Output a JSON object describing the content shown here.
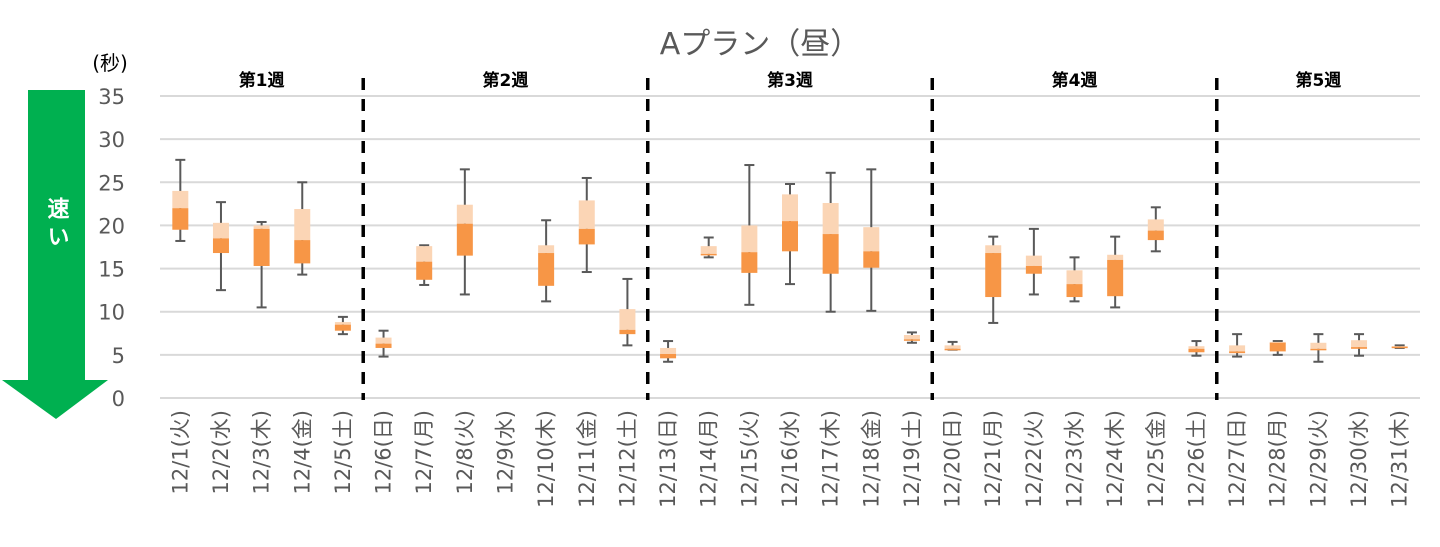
{
  "chart_data": {
    "type": "boxplot",
    "title": "Aプラン（昼）",
    "ylabel": "(秒)",
    "ylim": [
      0,
      35
    ],
    "yticks": [
      0,
      5,
      10,
      15,
      20,
      25,
      30,
      35
    ],
    "grid": true,
    "arrow_label": "速い",
    "colors": {
      "upper_box": "#fbd5b5",
      "lower_box": "#f79646",
      "whisker": "#595959",
      "grid": "#d9d9d9",
      "arrow": "#00b050",
      "separator": "#000000"
    },
    "weeks": [
      {
        "label": "第1週",
        "start": 0,
        "end": 4
      },
      {
        "label": "第2週",
        "start": 5,
        "end": 11
      },
      {
        "label": "第3週",
        "start": 12,
        "end": 18
      },
      {
        "label": "第4週",
        "start": 19,
        "end": 25
      },
      {
        "label": "第5週",
        "start": 26,
        "end": 30
      }
    ],
    "categories": [
      "12/1(火)",
      "12/2(水)",
      "12/3(木)",
      "12/4(金)",
      "12/5(土)",
      "12/6(日)",
      "12/7(月)",
      "12/8(火)",
      "12/9(水)",
      "12/10(木)",
      "12/11(金)",
      "12/12(土)",
      "12/13(日)",
      "12/14(月)",
      "12/15(火)",
      "12/16(水)",
      "12/17(木)",
      "12/18(金)",
      "12/19(土)",
      "12/20(日)",
      "12/21(月)",
      "12/22(火)",
      "12/23(水)",
      "12/24(木)",
      "12/25(金)",
      "12/26(土)",
      "12/27(日)",
      "12/28(月)",
      "12/29(火)",
      "12/30(水)",
      "12/31(木)"
    ],
    "boxes": [
      {
        "min": 18.2,
        "q1": 19.5,
        "median": 22.0,
        "q3": 24.0,
        "max": 27.6
      },
      {
        "min": 12.5,
        "q1": 16.8,
        "median": 18.5,
        "q3": 20.3,
        "max": 22.7
      },
      {
        "min": 10.5,
        "q1": 15.3,
        "median": 19.6,
        "q3": 20.0,
        "max": 20.4
      },
      {
        "min": 14.3,
        "q1": 15.6,
        "median": 18.3,
        "q3": 21.9,
        "max": 25.0
      },
      {
        "min": 7.4,
        "q1": 7.8,
        "median": 8.5,
        "q3": 8.8,
        "max": 9.4
      },
      {
        "min": 4.8,
        "q1": 5.8,
        "median": 6.3,
        "q3": 7.0,
        "max": 7.8
      },
      {
        "min": 13.1,
        "q1": 13.7,
        "median": 15.8,
        "q3": 17.6,
        "max": 17.7
      },
      {
        "min": 12.0,
        "q1": 16.5,
        "median": 20.2,
        "q3": 22.4,
        "max": 26.5
      },
      null,
      {
        "min": 11.2,
        "q1": 13.0,
        "median": 16.8,
        "q3": 17.7,
        "max": 20.6
      },
      {
        "min": 14.6,
        "q1": 17.8,
        "median": 19.6,
        "q3": 22.9,
        "max": 25.5
      },
      {
        "min": 6.1,
        "q1": 7.4,
        "median": 7.9,
        "q3": 10.3,
        "max": 13.8
      },
      {
        "min": 4.2,
        "q1": 4.6,
        "median": 5.1,
        "q3": 5.8,
        "max": 6.6
      },
      {
        "min": 16.3,
        "q1": 16.6,
        "median": 16.7,
        "q3": 17.6,
        "max": 18.6
      },
      {
        "min": 10.8,
        "q1": 14.5,
        "median": 16.9,
        "q3": 20.0,
        "max": 27.0
      },
      {
        "min": 13.2,
        "q1": 17.0,
        "median": 20.5,
        "q3": 23.6,
        "max": 24.8
      },
      {
        "min": 10.0,
        "q1": 14.4,
        "median": 19.0,
        "q3": 22.6,
        "max": 26.1
      },
      {
        "min": 10.1,
        "q1": 15.1,
        "median": 17.0,
        "q3": 19.8,
        "max": 26.5
      },
      {
        "min": 6.4,
        "q1": 6.75,
        "median": 6.8,
        "q3": 7.3,
        "max": 7.6
      },
      {
        "min": 5.6,
        "q1": 5.65,
        "median": 5.7,
        "q3": 6.1,
        "max": 6.5
      },
      {
        "min": 8.7,
        "q1": 11.7,
        "median": 16.8,
        "q3": 17.7,
        "max": 18.7
      },
      {
        "min": 12.0,
        "q1": 14.4,
        "median": 15.3,
        "q3": 16.5,
        "max": 19.6
      },
      {
        "min": 11.2,
        "q1": 11.7,
        "median": 13.2,
        "q3": 14.8,
        "max": 16.3
      },
      {
        "min": 10.5,
        "q1": 11.8,
        "median": 16.0,
        "q3": 16.6,
        "max": 18.7
      },
      {
        "min": 17.0,
        "q1": 18.3,
        "median": 19.4,
        "q3": 20.7,
        "max": 22.1
      },
      {
        "min": 4.9,
        "q1": 5.3,
        "median": 5.7,
        "q3": 6.0,
        "max": 6.6
      },
      {
        "min": 4.8,
        "q1": 5.2,
        "median": 5.4,
        "q3": 6.1,
        "max": 7.4
      },
      {
        "min": 5.0,
        "q1": 5.4,
        "median": 6.4,
        "q3": 6.5,
        "max": 6.6
      },
      {
        "min": 4.2,
        "q1": 5.6,
        "median": 5.7,
        "q3": 6.4,
        "max": 7.4
      },
      {
        "min": 4.9,
        "q1": 5.7,
        "median": 5.9,
        "q3": 6.7,
        "max": 7.4
      },
      {
        "min": 5.8,
        "q1": 5.9,
        "median": 5.95,
        "q3": 6.0,
        "max": 6.1
      }
    ]
  }
}
